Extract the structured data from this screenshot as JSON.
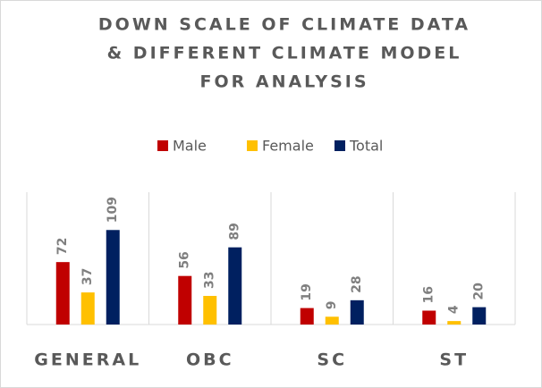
{
  "chart_data": {
    "type": "bar",
    "title": [
      "DOWN SCALE OF CLIMATE DATA",
      "& DIFFERENT CLIMATE MODEL",
      "FOR ANALYSIS"
    ],
    "categories": [
      "GENERAL",
      "OBC",
      "SC",
      "ST"
    ],
    "series": [
      {
        "name": "Male",
        "color": "#c00000",
        "values": [
          72,
          56,
          19,
          16
        ]
      },
      {
        "name": "Female",
        "color": "#ffc000",
        "values": [
          37,
          33,
          9,
          4
        ]
      },
      {
        "name": "Total",
        "color": "#002060",
        "values": [
          109,
          89,
          28,
          20
        ]
      }
    ],
    "legend": "top"
  }
}
